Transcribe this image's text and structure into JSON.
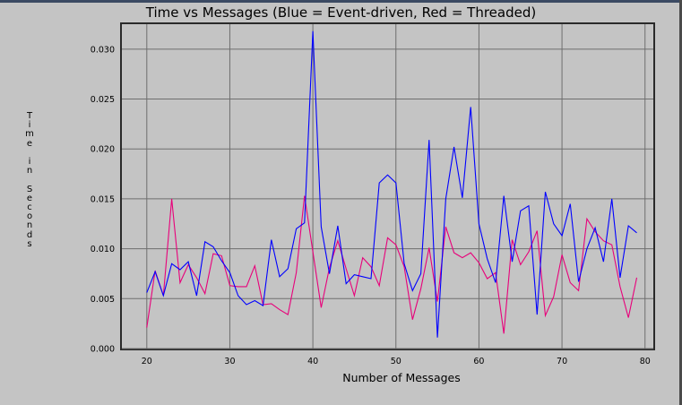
{
  "chart_data": {
    "type": "line",
    "title": "Time vs Messages (Blue = Event-driven, Red = Threaded)",
    "xlabel": "Number of Messages",
    "ylabel": "Time in Seconds",
    "xlim": [
      17,
      81
    ],
    "ylim": [
      0.0,
      0.0325
    ],
    "grid": true,
    "x_ticks": [
      20,
      30,
      40,
      50,
      60,
      70,
      80
    ],
    "y_ticks": [
      "0.000",
      "0.005",
      "0.010",
      "0.015",
      "0.020",
      "0.025",
      "0.030"
    ],
    "x": [
      20,
      21,
      22,
      23,
      24,
      25,
      26,
      27,
      28,
      29,
      30,
      31,
      32,
      33,
      34,
      35,
      36,
      37,
      38,
      39,
      40,
      41,
      42,
      43,
      44,
      45,
      46,
      47,
      48,
      49,
      50,
      51,
      52,
      53,
      54,
      55,
      56,
      57,
      58,
      59,
      60,
      61,
      62,
      63,
      64,
      65,
      66,
      67,
      68,
      69,
      70,
      71,
      72,
      73,
      74,
      75,
      76,
      77,
      78,
      79
    ],
    "series": [
      {
        "color": "#0000ff",
        "values": [
          0.0056,
          0.0077,
          0.0053,
          0.0085,
          0.0079,
          0.0087,
          0.0053,
          0.0107,
          0.0102,
          0.0088,
          0.0076,
          0.0053,
          0.0044,
          0.0048,
          0.0043,
          0.0109,
          0.0072,
          0.008,
          0.012,
          0.0126,
          0.0318,
          0.0122,
          0.0075,
          0.0123,
          0.0065,
          0.0074,
          0.0072,
          0.007,
          0.0166,
          0.0174,
          0.0166,
          0.0085,
          0.0058,
          0.0075,
          0.0209,
          0.0011,
          0.015,
          0.0202,
          0.0151,
          0.0242,
          0.0125,
          0.009,
          0.0066,
          0.0153,
          0.0087,
          0.0138,
          0.0143,
          0.0034,
          0.0157,
          0.0125,
          0.0113,
          0.0145,
          0.0067,
          0.01,
          0.0121,
          0.0087,
          0.015,
          0.0071,
          0.0123,
          0.0116
        ]
      },
      {
        "color": "#e8007a",
        "values": [
          0.0021,
          0.0078,
          0.0053,
          0.015,
          0.0066,
          0.0084,
          0.0071,
          0.0055,
          0.0095,
          0.0093,
          0.0063,
          0.0062,
          0.0062,
          0.0083,
          0.0044,
          0.0045,
          0.0039,
          0.0034,
          0.0076,
          0.0153,
          0.0097,
          0.0041,
          0.0081,
          0.0108,
          0.008,
          0.0053,
          0.0091,
          0.0082,
          0.0063,
          0.0111,
          0.0104,
          0.0082,
          0.0029,
          0.006,
          0.0101,
          0.0047,
          0.0122,
          0.0096,
          0.0091,
          0.0096,
          0.0086,
          0.007,
          0.0076,
          0.0015,
          0.0109,
          0.0084,
          0.0097,
          0.0118,
          0.0033,
          0.0052,
          0.0094,
          0.0066,
          0.0058,
          0.013,
          0.0117,
          0.0108,
          0.0104,
          0.0062,
          0.0031,
          0.0071
        ]
      }
    ]
  }
}
